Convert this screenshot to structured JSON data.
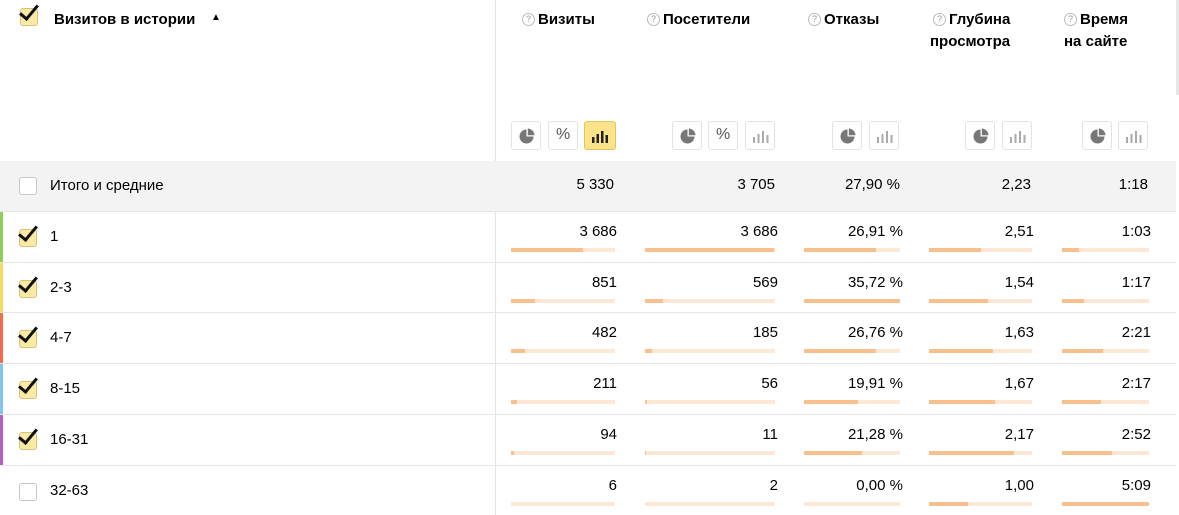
{
  "header": {
    "dimension_title": "Визитов в истории",
    "sort_arrow": "▲",
    "columns": [
      {
        "line1": "Визиты",
        "line2": ""
      },
      {
        "line1": "Посетители",
        "line2": ""
      },
      {
        "line1": "Отказы",
        "line2": ""
      },
      {
        "line1": "Глубина",
        "line2": "просмотра"
      },
      {
        "line1": "Время",
        "line2": "на сайте"
      }
    ],
    "help_glyph": "?",
    "percent_glyph": "%"
  },
  "total": {
    "label": "Итого и средние",
    "values": [
      "5 330",
      "3 705",
      "27,90 %",
      "2,23",
      "1:18"
    ]
  },
  "rows": [
    {
      "label": "1",
      "checked": true,
      "color": "#8dcf5a",
      "values": [
        "3 686",
        "3 686",
        "26,91 %",
        "2,51",
        "1:03"
      ],
      "shares": [
        0.69,
        0.995,
        0.75,
        0.5,
        0.2
      ]
    },
    {
      "label": "2-3",
      "checked": true,
      "color": "#f6dd5f",
      "values": [
        "851",
        "569",
        "35,72 %",
        "1,54",
        "1:17"
      ],
      "shares": [
        0.23,
        0.14,
        1.0,
        0.57,
        0.25
      ]
    },
    {
      "label": "4-7",
      "checked": true,
      "color": "#f26b4a",
      "values": [
        "482",
        "185",
        "26,76 %",
        "1,63",
        "2:21"
      ],
      "shares": [
        0.13,
        0.05,
        0.75,
        0.62,
        0.47
      ]
    },
    {
      "label": "8-15",
      "checked": true,
      "color": "#7fc4ef",
      "values": [
        "211",
        "56",
        "19,91 %",
        "1,67",
        "2:17"
      ],
      "shares": [
        0.06,
        0.015,
        0.56,
        0.64,
        0.45
      ]
    },
    {
      "label": "16-31",
      "checked": true,
      "color": "#b45ec6",
      "values": [
        "94",
        "11",
        "21,28 %",
        "2,17",
        "2:52"
      ],
      "shares": [
        0.025,
        0.004,
        0.6,
        0.83,
        0.57
      ]
    },
    {
      "label": "32-63",
      "checked": false,
      "color": "",
      "values": [
        "6",
        "2",
        "0,00 %",
        "1,00",
        "5:09"
      ],
      "shares": [
        0.002,
        0.001,
        0.0,
        0.38,
        1.0
      ]
    }
  ],
  "colors": {
    "checkbox_checked": "#fbe9a6",
    "bar_fill": "#f7c08d",
    "bar_track": "#fde7d5",
    "active_button": "#fce38a",
    "total_row_bg": "#f3f3f3"
  },
  "icons": [
    "checkbox-checked-icon",
    "sort-up-icon",
    "help-icon",
    "pie-chart-icon",
    "percent-icon",
    "bar-chart-icon"
  ]
}
